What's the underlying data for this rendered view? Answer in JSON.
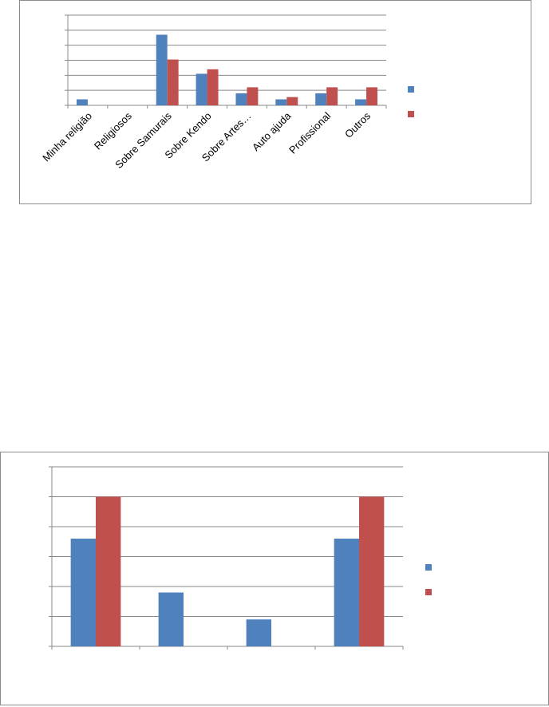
{
  "chart_data": [
    {
      "type": "bar",
      "categories": [
        "Minha religião",
        "Religiosos",
        "Sobre Samurais",
        "Sobre Kendo",
        "Sobre Artes…",
        "Auto ajuda",
        "Profissional",
        "Outros"
      ],
      "series": [
        {
          "values": [
            0.4,
            0,
            4.7,
            2.1,
            0.8,
            0.4,
            0.8,
            0.4
          ],
          "color": "#4f81bd"
        },
        {
          "values": [
            0,
            0,
            3.05,
            2.4,
            1.2,
            0.55,
            1.2,
            1.2
          ],
          "color": "#c0504d"
        }
      ],
      "ylim": [
        0,
        6
      ],
      "gridlines": 6,
      "grid": true,
      "legend": "right",
      "tick_rotation": -45
    },
    {
      "type": "bar",
      "categories": [
        "",
        "",
        "",
        ""
      ],
      "series": [
        {
          "values": [
            3.6,
            1.8,
            0.9,
            3.6
          ],
          "color": "#4f81bd"
        },
        {
          "values": [
            5,
            0,
            0,
            5
          ],
          "color": "#c0504d"
        }
      ],
      "ylim": [
        0,
        6
      ],
      "gridlines": 6,
      "grid": true,
      "legend": "right"
    }
  ]
}
